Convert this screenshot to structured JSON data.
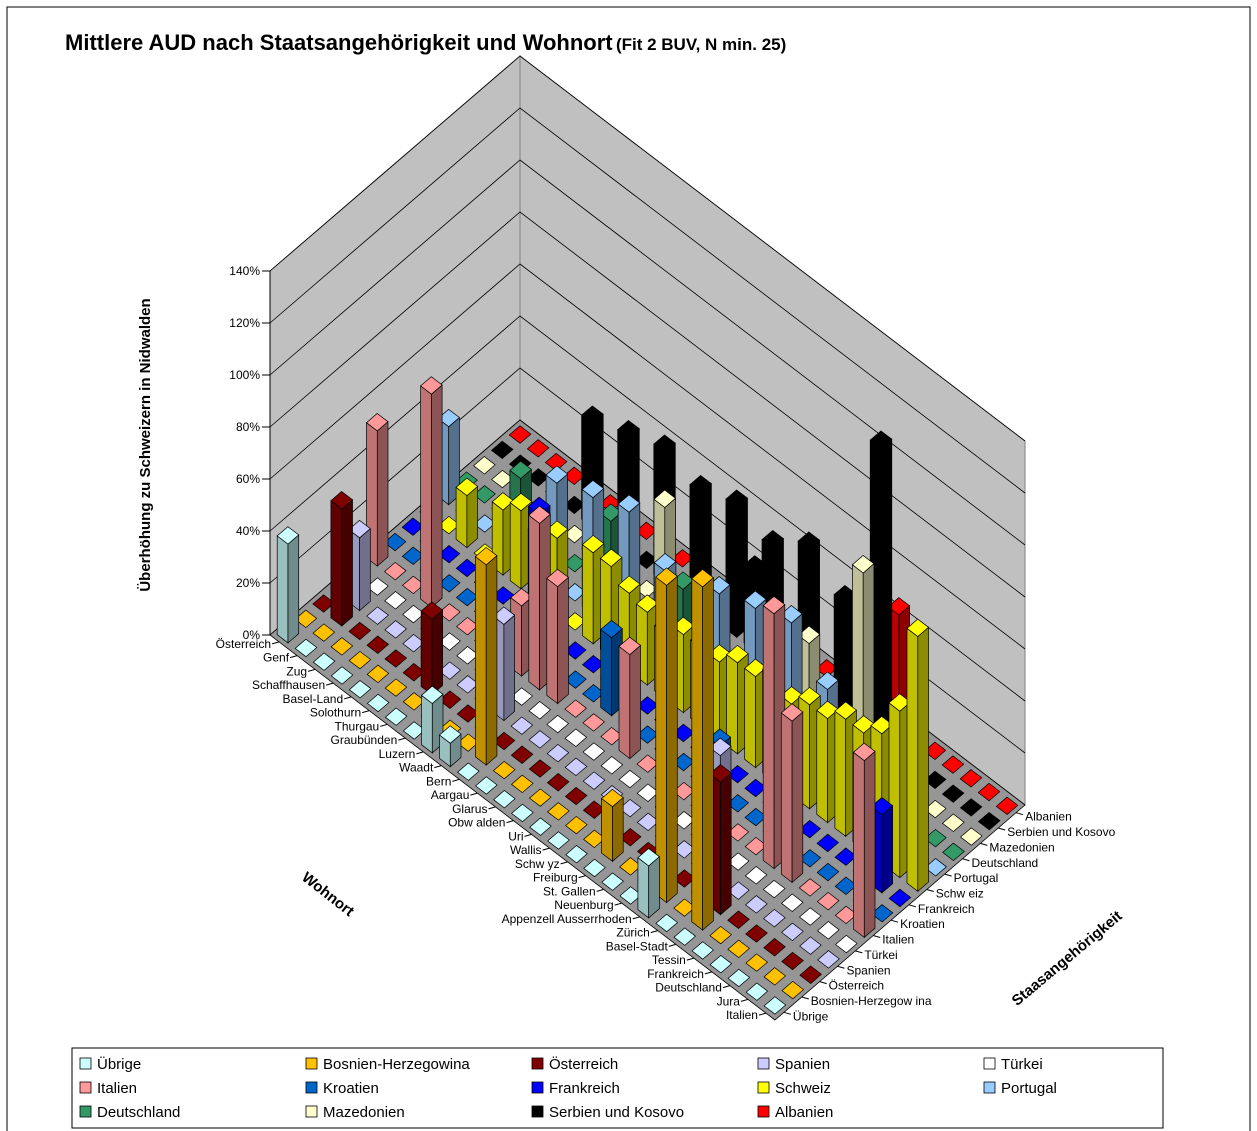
{
  "chart_data": {
    "type": "bar3d",
    "title": "Mittlere AUD nach Staatsangehörigkeit und Wohnort",
    "title_note": "(Fit 2 BUV, N min. 25)",
    "ylabel": "Überhöhung zu Schweizern in Nidwalden",
    "xlabel": "Wohnort",
    "zlabel": "Staasangehörigkeit",
    "ylim": [
      0,
      140
    ],
    "yticks": [
      {
        "value": 0,
        "label": "0%"
      },
      {
        "value": 20,
        "label": "20%"
      },
      {
        "value": 40,
        "label": "40%"
      },
      {
        "value": 60,
        "label": "60%"
      },
      {
        "value": 80,
        "label": "80%"
      },
      {
        "value": 100,
        "label": "100%"
      },
      {
        "value": 120,
        "label": "120%"
      },
      {
        "value": 140,
        "label": "140%"
      }
    ],
    "grid": true,
    "categories": [
      "Österreich",
      "Genf",
      "Zug",
      "Schaffhausen",
      "Basel-Land",
      "Solothurn",
      "Thurgau",
      "Graubünden",
      "Luzern",
      "Waadt",
      "Bern",
      "Aargau",
      "Glarus",
      "Obw alden",
      "Uri",
      "Wallis",
      "Schw yz",
      "Freiburg",
      "St. Gallen",
      "Neuenburg",
      "Appenzell Ausserrhoden",
      "Zürich",
      "Basel-Stadt",
      "Tessin",
      "Frankreich",
      "Deutschland",
      "Jura",
      "Italien"
    ],
    "series_labels": [
      "Übrige",
      "Bosnien-Herzegow ina",
      "Österreich",
      "Spanien",
      "Türkei",
      "Italien",
      "Kroatien",
      "Frankreich",
      "Schw eiz",
      "Portugal",
      "Deutschland",
      "Mazedonien",
      "Serbien und Kosovo",
      "Albanien"
    ],
    "series": [
      {
        "name": "Übrige",
        "color": "#ccffff",
        "values": [
          38,
          0,
          0,
          0,
          0,
          0,
          0,
          0,
          19,
          9,
          0,
          0,
          0,
          0,
          0,
          0,
          0,
          0,
          0,
          0,
          20,
          0,
          0,
          0,
          0,
          0,
          0,
          0
        ]
      },
      {
        "name": "Bosnien-Herzegowina",
        "color": "#ffc000",
        "values": [
          0,
          0,
          0,
          0,
          0,
          0,
          0,
          0,
          0,
          0,
          77,
          0,
          0,
          0,
          0,
          0,
          0,
          21,
          0,
          0,
          122,
          0,
          132,
          0,
          0,
          0,
          0,
          0
        ]
      },
      {
        "name": "Österreich",
        "color": "#800000",
        "values": [
          0,
          45,
          0,
          0,
          0,
          0,
          29,
          0,
          0,
          0,
          0,
          0,
          0,
          0,
          0,
          0,
          0,
          0,
          0,
          0,
          0,
          0,
          51,
          0,
          0,
          0,
          0,
          0
        ]
      },
      {
        "name": "Spanien",
        "color": "#ccccff",
        "values": [
          0,
          28,
          0,
          0,
          0,
          0,
          0,
          0,
          0,
          37,
          0,
          0,
          0,
          0,
          0,
          0,
          0,
          0,
          0,
          0,
          0,
          50,
          0,
          0,
          0,
          0,
          0,
          0
        ]
      },
      {
        "name": "Türkei",
        "color": "#ffffff",
        "values": [
          0,
          0,
          0,
          0,
          0,
          0,
          0,
          0,
          0,
          0,
          0,
          0,
          0,
          0,
          0,
          0,
          0,
          0,
          0,
          0,
          0,
          0,
          0,
          0,
          0,
          0,
          0,
          0
        ]
      },
      {
        "name": "Italien",
        "color": "#ff9999",
        "values": [
          52,
          0,
          0,
          82,
          0,
          0,
          0,
          0,
          27,
          64,
          45,
          0,
          0,
          0,
          40,
          0,
          0,
          0,
          0,
          0,
          0,
          0,
          98,
          62,
          0,
          0,
          0,
          68
        ]
      },
      {
        "name": "Kroatien",
        "color": "#0066cc",
        "values": [
          0,
          0,
          0,
          0,
          0,
          0,
          0,
          0,
          40,
          0,
          0,
          0,
          30,
          0,
          0,
          0,
          0,
          0,
          20,
          0,
          0,
          0,
          0,
          0,
          0,
          0,
          0,
          0
        ]
      },
      {
        "name": "Frankreich",
        "color": "#0000ff",
        "values": [
          0,
          0,
          0,
          0,
          0,
          0,
          0,
          45,
          0,
          0,
          0,
          0,
          0,
          0,
          0,
          0,
          0,
          0,
          0,
          0,
          0,
          0,
          0,
          0,
          0,
          0,
          30,
          0
        ]
      },
      {
        "name": "Schweiz",
        "color": "#ffff00",
        "values": [
          0,
          0,
          20,
          0,
          25,
          30,
          25,
          30,
          0,
          35,
          35,
          30,
          28,
          25,
          30,
          30,
          30,
          35,
          35,
          40,
          35,
          40,
          40,
          45,
          45,
          50,
          64,
          98
        ]
      },
      {
        "name": "Portugal",
        "color": "#99ccff",
        "values": [
          30,
          0,
          0,
          0,
          0,
          0,
          40,
          0,
          45,
          0,
          50,
          0,
          38,
          0,
          0,
          45,
          0,
          50,
          0,
          55,
          0,
          40,
          0,
          30,
          0,
          0,
          0,
          0
        ]
      },
      {
        "name": "Deutschland",
        "color": "#339966",
        "values": [
          0,
          0,
          0,
          20,
          0,
          0,
          0,
          0,
          30,
          0,
          0,
          0,
          25,
          0,
          0,
          0,
          0,
          0,
          0,
          0,
          0,
          0,
          0,
          0,
          0,
          20,
          0,
          0
        ]
      },
      {
        "name": "Mazedonien",
        "color": "#ffffcc",
        "values": [
          0,
          0,
          0,
          0,
          0,
          0,
          0,
          0,
          0,
          0,
          40,
          0,
          0,
          0,
          0,
          0,
          0,
          0,
          30,
          0,
          0,
          73,
          0,
          0,
          0,
          0,
          0,
          0
        ]
      },
      {
        "name": "Serbien und Kosovo",
        "color": "#000000",
        "values": [
          0,
          0,
          0,
          0,
          0,
          40,
          0,
          45,
          0,
          50,
          0,
          45,
          0,
          50,
          30,
          45,
          0,
          55,
          0,
          45,
          0,
          115,
          0,
          0,
          0,
          0,
          0,
          0
        ]
      },
      {
        "name": "Albanien",
        "color": "#ff0000",
        "values": [
          0,
          0,
          0,
          0,
          0,
          0,
          0,
          0,
          0,
          0,
          0,
          0,
          0,
          0,
          0,
          0,
          0,
          0,
          0,
          0,
          0,
          45,
          0,
          0,
          0,
          0,
          0,
          0
        ]
      }
    ]
  }
}
